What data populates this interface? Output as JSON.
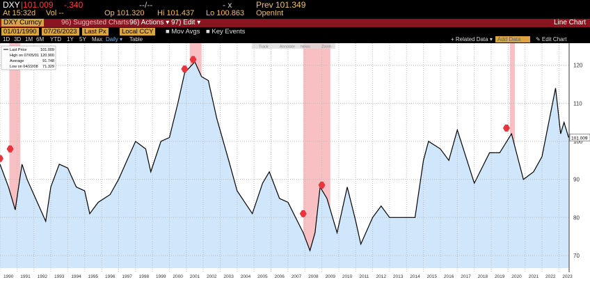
{
  "header": {
    "ticker": "DXY",
    "last": "|101.009",
    "change": "-.340",
    "time_range": "--/--",
    "bid": "- x",
    "prev": "Prev 101.349",
    "at": "At 15:32d",
    "vol": "Vol --",
    "open": "Op 101.320",
    "high": "Hi 101.437",
    "low": "Lo 100.863",
    "open_int": "OpenInt"
  },
  "menu": {
    "security": "DXY Curncy",
    "items": [
      "96) Suggested Charts",
      "96) Actions ▾",
      "97) Edit ▾"
    ],
    "chart_kind": "Line Chart"
  },
  "settings": {
    "start": "01/01/1990",
    "end": "07/26/2023",
    "field": "Last Px",
    "currency": "Local CCY",
    "mov_avgs": "■ Mov Avgs",
    "key_events": "■ Key Events"
  },
  "ranges": [
    "1D",
    "3D",
    "1M",
    "6M",
    "YTD",
    "1Y",
    "5Y",
    "Max",
    "Daily ▾",
    "Table"
  ],
  "right_buttons": [
    "+ Related Data ▾",
    "Add Data",
    "✎ Edit Chart"
  ],
  "tools": [
    "Track",
    "Annotate",
    "News",
    "Zoom"
  ],
  "legend": [
    {
      "label": "Last Price",
      "value": "101.009"
    },
    {
      "label": "High on 07/05/01",
      "value": "120.900"
    },
    {
      "label": "Average",
      "value": "91.748"
    },
    {
      "label": "Low on 04/22/08",
      "value": "71.329"
    }
  ],
  "chart_data": {
    "type": "line",
    "color": "#000000",
    "fill": "#cfe6fb",
    "x": [
      1990.0,
      1990.5,
      1990.9,
      1991.3,
      1991.6,
      1992.0,
      1992.7,
      1993.0,
      1993.5,
      1994.0,
      1994.5,
      1995.0,
      1995.3,
      1995.8,
      1996.5,
      1997.0,
      1997.5,
      1998.0,
      1998.6,
      1998.9,
      1999.5,
      2000.0,
      2000.5,
      2000.9,
      2001.5,
      2001.9,
      2002.3,
      2002.8,
      2003.5,
      2004.0,
      2004.9,
      2005.5,
      2005.9,
      2006.5,
      2007.0,
      2007.9,
      2008.3,
      2008.6,
      2008.9,
      2009.3,
      2009.9,
      2010.5,
      2011.0,
      2011.3,
      2012.0,
      2012.5,
      2013.0,
      2014.0,
      2014.5,
      2015.0,
      2015.3,
      2016.0,
      2016.5,
      2017.0,
      2018.0,
      2018.9,
      2019.5,
      2020.2,
      2020.9,
      2021.5,
      2022.0,
      2022.8,
      2023.1,
      2023.3,
      2023.57
    ],
    "values": [
      94,
      88,
      82,
      94,
      90,
      86,
      79,
      88,
      94,
      93,
      88,
      87,
      81,
      84,
      86,
      90,
      95,
      100,
      98,
      92,
      100,
      101,
      110,
      118,
      120.9,
      117,
      116,
      106,
      95,
      87,
      81,
      89,
      92,
      85,
      84,
      76,
      71.3,
      76,
      88,
      85,
      76,
      88,
      79,
      73,
      80,
      83,
      80,
      80,
      80,
      95,
      100,
      98,
      95,
      103,
      89,
      97,
      97,
      102,
      90,
      92,
      96,
      114,
      102,
      105,
      101.009
    ],
    "xlim": [
      1990,
      2023.6
    ],
    "ylim": [
      66.7,
      125.8
    ],
    "xticks": [
      1990,
      1991,
      1992,
      1993,
      1994,
      1995,
      1996,
      1997,
      1998,
      1999,
      2000,
      2001,
      2002,
      2003,
      2004,
      2005,
      2006,
      2007,
      2008,
      2009,
      2010,
      2011,
      2012,
      2013,
      2014,
      2015,
      2016,
      2017,
      2018,
      2019,
      2020,
      2021,
      2022,
      2023
    ],
    "yticks": [
      70,
      80,
      90,
      100,
      110,
      120
    ],
    "shaded_ranges": [
      [
        1990.55,
        1991.2
      ],
      [
        2001.2,
        2001.9
      ],
      [
        2007.9,
        2009.5
      ],
      [
        2020.1,
        2020.4
      ]
    ],
    "event_markers": [
      {
        "x": 1990.0,
        "y": 95.5
      },
      {
        "x": 1990.6,
        "y": 98
      },
      {
        "x": 2000.9,
        "y": 119
      },
      {
        "x": 2001.4,
        "y": 121.5
      },
      {
        "x": 2007.9,
        "y": 81
      },
      {
        "x": 2009.0,
        "y": 88.5
      },
      {
        "x": 2019.9,
        "y": 103.5
      }
    ],
    "grid": true
  }
}
